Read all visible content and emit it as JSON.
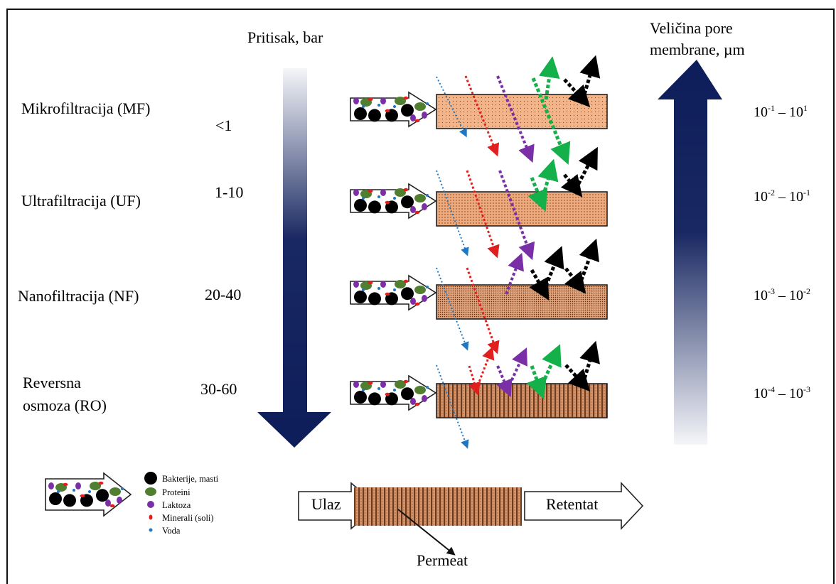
{
  "titles": {
    "pressure": "Pritisak, bar",
    "pore_line1": "Veličina pore",
    "pore_line2": "membrane, µm"
  },
  "processes": [
    {
      "name": "Mikrofiltracija (MF)",
      "pressure": "<1",
      "pore": {
        "a_base": "10",
        "a_exp": "-1",
        "sep": " – ",
        "b_base": "10",
        "b_exp": "1"
      }
    },
    {
      "name": "Ultrafiltracija (UF)",
      "pressure": "1-10",
      "pore": {
        "a_base": "10",
        "a_exp": "-2",
        "sep": " – ",
        "b_base": "10",
        "b_exp": "-1"
      }
    },
    {
      "name": "Nanofiltracija (NF)",
      "pressure": "20-40",
      "pore": {
        "a_base": "10",
        "a_exp": "-3",
        "sep": " – ",
        "b_base": "10",
        "b_exp": "-2"
      }
    },
    {
      "name_line1": "Reversna",
      "name_line2": "osmoza (RO)",
      "pressure": "30-60",
      "pore": {
        "a_base": "10",
        "a_exp": "-4",
        "sep": " – ",
        "b_base": "10",
        "b_exp": "-3"
      }
    }
  ],
  "legend": {
    "items": [
      {
        "label": "Bakterije, masti",
        "color": "#000000",
        "shape": "large-circle"
      },
      {
        "label": "Proteini",
        "color": "#4f7f2f",
        "shape": "ellipse"
      },
      {
        "label": "Laktoza",
        "color": "#7a2fa6",
        "shape": "small-ellipse"
      },
      {
        "label": "Minerali (soli)",
        "color": "#e01f1f",
        "shape": "dash"
      },
      {
        "label": "Voda",
        "color": "#1f77c2",
        "shape": "dot"
      }
    ]
  },
  "scheme": {
    "inlet": "Ulaz",
    "retentate": "Retentat",
    "permeate": "Permeat"
  },
  "colors": {
    "navy": "#0d1d5a",
    "membrane": "#f2b488",
    "water": "#1f77c2",
    "minerals": "#e01f1f",
    "lactose": "#7a2fa6",
    "protein": "#14b04a",
    "bacteria": "#000000"
  }
}
